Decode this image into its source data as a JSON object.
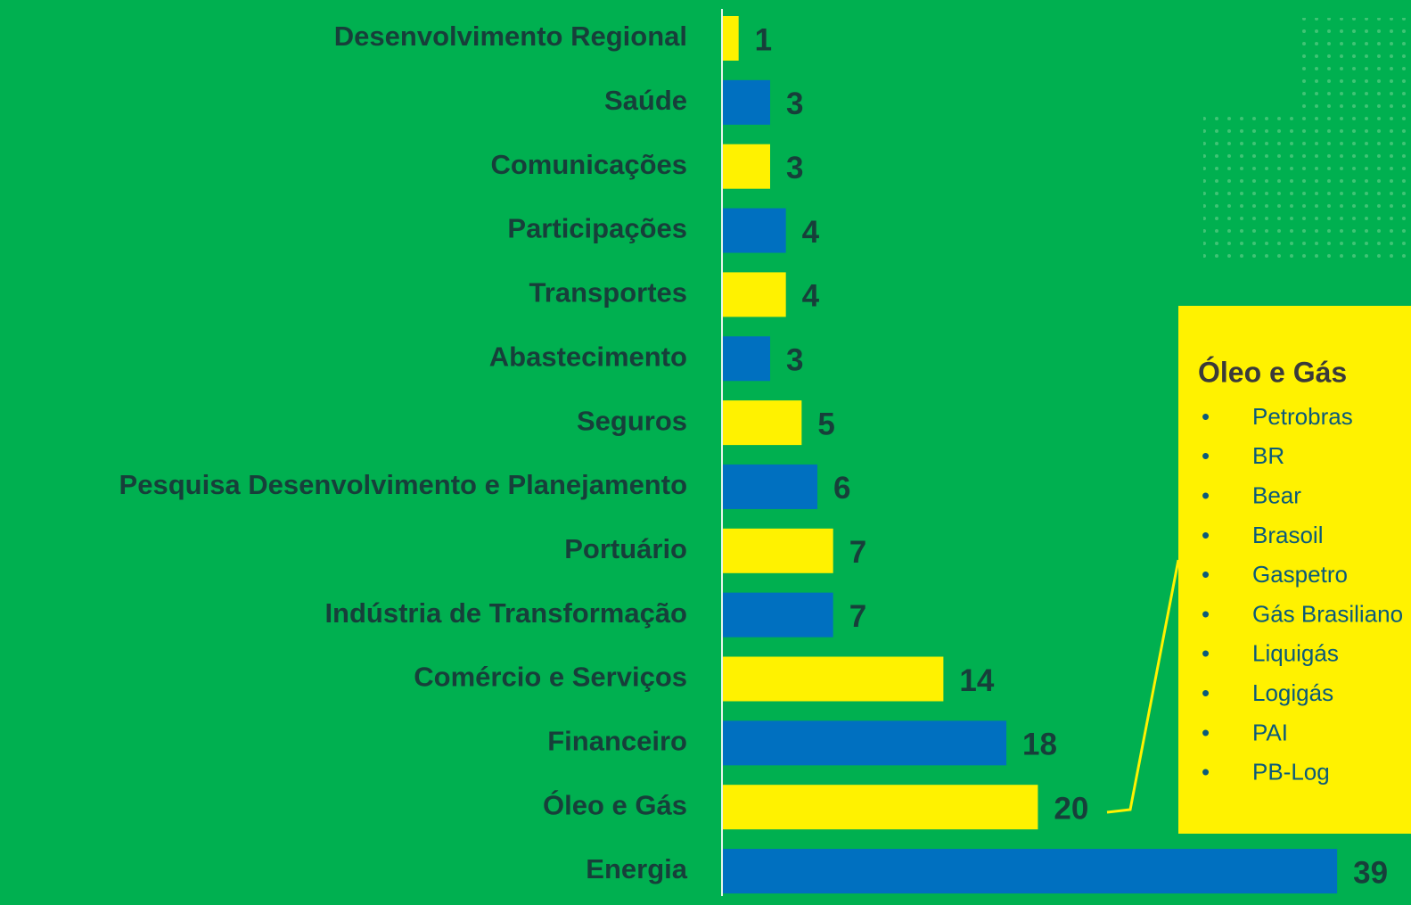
{
  "chart_data": {
    "type": "bar",
    "orientation": "horizontal",
    "categories": [
      "Desenvolvimento Regional",
      "Saúde",
      "Comunicações",
      "Participações",
      "Transportes",
      "Abastecimento",
      "Seguros",
      "Pesquisa Desenvolvimento e Planejamento",
      "Portuário",
      "Indústria de Transformação",
      "Comércio e Serviços",
      "Financeiro",
      "Óleo e Gás",
      "Energia"
    ],
    "values": [
      1,
      3,
      3,
      4,
      4,
      3,
      5,
      6,
      7,
      7,
      14,
      18,
      20,
      39
    ],
    "colors": [
      "#fff200",
      "#0070c0",
      "#fff200",
      "#0070c0",
      "#fff200",
      "#0070c0",
      "#fff200",
      "#0070c0",
      "#fff200",
      "#0070c0",
      "#fff200",
      "#0070c0",
      "#fff200",
      "#0070c0"
    ],
    "annotation": {
      "title": "Óleo e Gás",
      "items": [
        "Petrobras",
        "BR",
        "Bear",
        "Brasoil",
        "Gaspetro",
        "Gás Brasiliano",
        "Liquigás",
        "Logigás",
        "PAI",
        "PB-Log"
      ]
    }
  }
}
